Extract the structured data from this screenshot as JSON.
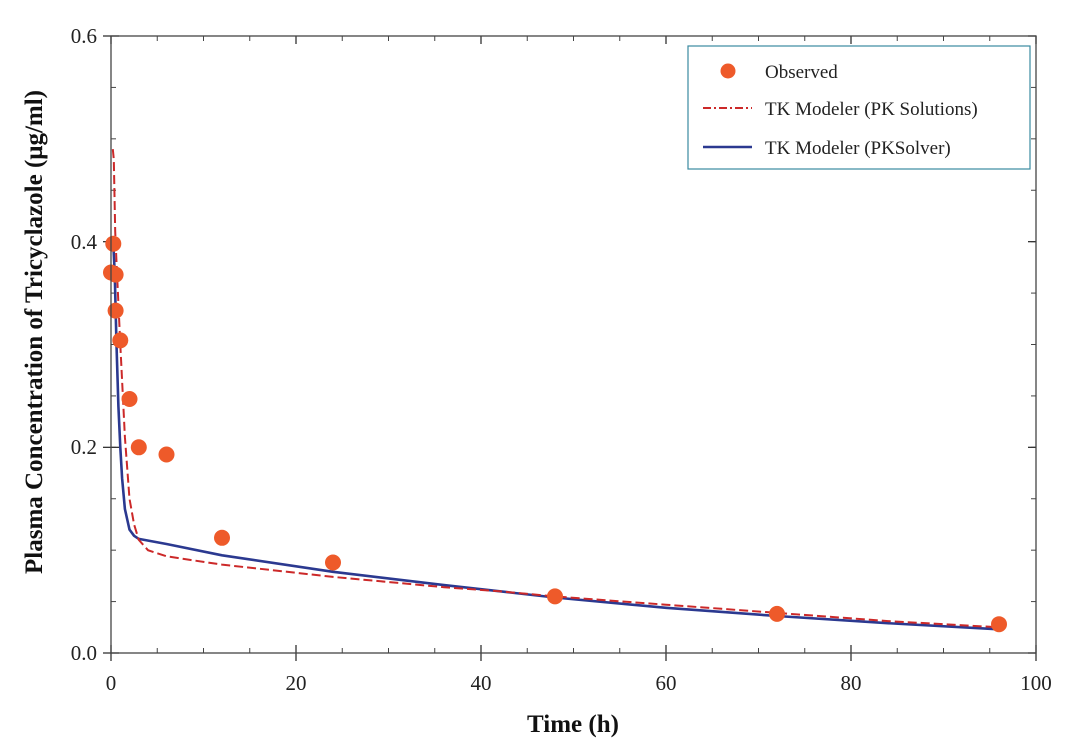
{
  "chart_data": {
    "type": "scatter",
    "xlabel": "Time (h)",
    "ylabel": "Plasma Concentration of Tricyclazole (μg/ml)",
    "xlim": [
      0,
      100
    ],
    "ylim": [
      0,
      0.6
    ],
    "x_ticks": [
      "0",
      "20",
      "40",
      "60",
      "80",
      "100"
    ],
    "y_ticks": [
      "0.0",
      "0.2",
      "0.4",
      "0.6"
    ],
    "x_tick_values": [
      0,
      20,
      40,
      60,
      80,
      100
    ],
    "y_tick_values": [
      0,
      0.2,
      0.4,
      0.6
    ],
    "legend_position": "top-right",
    "series": [
      {
        "name": "Observed",
        "style": "markers",
        "color": "#ee5a2a",
        "x": [
          0,
          0.25,
          0.5,
          0.5,
          1,
          2,
          3,
          6,
          12,
          24,
          48,
          72,
          96
        ],
        "y": [
          0.37,
          0.398,
          0.368,
          0.333,
          0.304,
          0.247,
          0.2,
          0.193,
          0.112,
          0.088,
          0.055,
          0.038,
          0.028
        ]
      },
      {
        "name": "TK Modeler (PK Solutions)",
        "style": "dash-dot",
        "color": "#cc2929",
        "x": [
          0.2,
          0.3,
          0.45,
          0.6,
          0.8,
          1,
          1.5,
          2,
          2.5,
          3,
          4,
          6,
          9,
          12,
          16,
          20,
          24,
          30,
          36,
          42,
          48,
          54,
          60,
          66,
          72,
          78,
          84,
          90,
          96
        ],
        "y": [
          0.49,
          0.48,
          0.41,
          0.38,
          0.34,
          0.3,
          0.21,
          0.15,
          0.125,
          0.11,
          0.1,
          0.094,
          0.09,
          0.086,
          0.082,
          0.078,
          0.074,
          0.069,
          0.064,
          0.06,
          0.055,
          0.051,
          0.047,
          0.043,
          0.039,
          0.035,
          0.031,
          0.028,
          0.025
        ]
      },
      {
        "name": "TK Modeler (PKSolver)",
        "style": "solid",
        "color": "#2b3990",
        "x": [
          0.25,
          0.4,
          0.6,
          0.8,
          1,
          1.2,
          1.5,
          2,
          2.5,
          3,
          6,
          12,
          24,
          36,
          48,
          60,
          72,
          84,
          96
        ],
        "y": [
          0.398,
          0.37,
          0.3,
          0.24,
          0.2,
          0.17,
          0.14,
          0.12,
          0.114,
          0.111,
          0.106,
          0.095,
          0.079,
          0.066,
          0.054,
          0.044,
          0.036,
          0.029,
          0.023
        ]
      }
    ]
  }
}
